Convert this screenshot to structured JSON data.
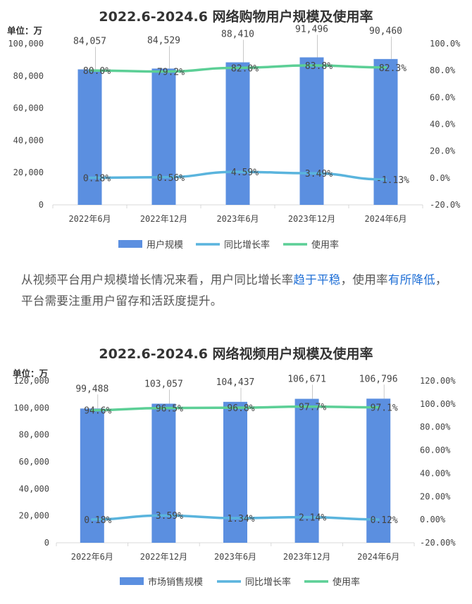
{
  "chart_data": [
    {
      "type": "bar",
      "title": "2022.6-2024.6 网络购物用户规模及使用率",
      "unit_label": "单位：万",
      "categories": [
        "2022年6月",
        "2022年12月",
        "2023年6月",
        "2023年12月",
        "2024年6月"
      ],
      "bar_series": {
        "name": "用户规模",
        "values": [
          84057,
          84529,
          88410,
          91496,
          90460
        ],
        "labels": [
          "84,057",
          "84,529",
          "88,410",
          "91,496",
          "90,460"
        ]
      },
      "line_series": [
        {
          "name": "同比增长率",
          "values": [
            0.18,
            0.56,
            4.59,
            3.49,
            -1.13
          ],
          "labels": [
            "0.18%",
            "0.56%",
            "4.59%",
            "3.49%",
            "-1.13%"
          ]
        },
        {
          "name": "使用率",
          "values": [
            80.0,
            79.2,
            82.0,
            83.8,
            82.3
          ],
          "labels": [
            "80.0%",
            "79.2%",
            "82.0%",
            "83.8%",
            "82.3%"
          ]
        }
      ],
      "y_left": {
        "min": 0,
        "max": 100000,
        "ticks": [
          "0",
          "20,000",
          "40,000",
          "60,000",
          "80,000",
          "100,000"
        ]
      },
      "y_right": {
        "min": -20,
        "max": 100,
        "ticks": [
          "-20.0%",
          "0.0%",
          "20.0%",
          "40.0%",
          "60.0%",
          "80.0%",
          "100.0%"
        ]
      },
      "legend": [
        "用户规模",
        "同比增长率",
        "使用率"
      ]
    },
    {
      "type": "bar",
      "title": "2022.6-2024.6 网络视频用户规模及使用率",
      "unit_label": "单位：万",
      "categories": [
        "2022年6月",
        "2022年12月",
        "2023年6月",
        "2023年12月",
        "2024年6月"
      ],
      "bar_series": {
        "name": "市场销售规模",
        "values": [
          99488,
          103057,
          104437,
          106671,
          106796
        ],
        "labels": [
          "99,488",
          "103,057",
          "104,437",
          "106,671",
          "106,796"
        ]
      },
      "line_series": [
        {
          "name": "同比增长率",
          "values": [
            0.18,
            3.59,
            1.34,
            2.14,
            0.12
          ],
          "labels": [
            "0.18%",
            "3.59%",
            "1.34%",
            "2.14%",
            "0.12%"
          ]
        },
        {
          "name": "使用率",
          "values": [
            94.6,
            96.5,
            96.8,
            97.7,
            97.1
          ],
          "labels": [
            "94.6%",
            "96.5%",
            "96.8%",
            "97.7%",
            "97.1%"
          ]
        }
      ],
      "y_left": {
        "min": 0,
        "max": 120000,
        "ticks": [
          "0",
          "20,000",
          "40,000",
          "60,000",
          "80,000",
          "100,000",
          "120,000"
        ]
      },
      "y_right": {
        "min": -20,
        "max": 120,
        "ticks": [
          "-20.00%",
          "0.00%",
          "20.00%",
          "40.00%",
          "60.00%",
          "80.00%",
          "100.00%",
          "120.00%"
        ]
      },
      "legend": [
        "市场销售规模",
        "同比增长率",
        "使用率"
      ]
    }
  ],
  "paragraph": {
    "part1": "从视频平台用户规模增长情况来看，用户同比增长率",
    "hl1": "趋于平稳",
    "part2": "，使用率",
    "hl2": "有所降低",
    "part3": "，平台需要注重用户留存和活跃度提升。"
  },
  "colors": {
    "bar": "#5b8fe0",
    "growth": "#5ab4dd",
    "usage": "#5ccf96",
    "axis": "#d9d9d9",
    "text": "#444444"
  }
}
